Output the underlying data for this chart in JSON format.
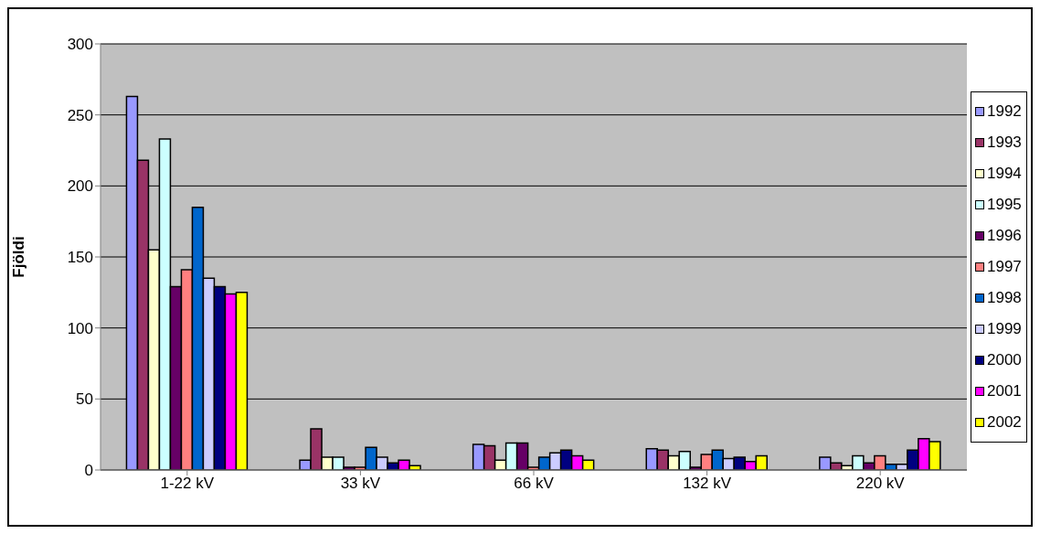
{
  "chart_data": {
    "type": "bar",
    "ylabel": "Fjöldi",
    "categories": [
      "1-22 kV",
      "33 kV",
      "66 kV",
      "132 kV",
      "220 kV"
    ],
    "ylim": [
      0,
      300
    ],
    "yticks": [
      0,
      50,
      100,
      150,
      200,
      250,
      300
    ],
    "grid": "y",
    "legend": "right",
    "series": [
      {
        "name": "1992",
        "color": "#9999ff",
        "values": [
          263,
          7,
          18,
          15,
          9
        ]
      },
      {
        "name": "1993",
        "color": "#993366",
        "values": [
          218,
          29,
          17,
          14,
          5
        ]
      },
      {
        "name": "1994",
        "color": "#ffffcc",
        "values": [
          155,
          9,
          7,
          10,
          3
        ]
      },
      {
        "name": "1995",
        "color": "#ccffff",
        "values": [
          233,
          9,
          19,
          13,
          10
        ]
      },
      {
        "name": "1996",
        "color": "#660066",
        "values": [
          129,
          2,
          19,
          2,
          5
        ]
      },
      {
        "name": "1997",
        "color": "#ff8080",
        "values": [
          141,
          2,
          2,
          11,
          10
        ]
      },
      {
        "name": "1998",
        "color": "#0066cc",
        "values": [
          185,
          16,
          9,
          14,
          4
        ]
      },
      {
        "name": "1999",
        "color": "#ccccff",
        "values": [
          135,
          9,
          12,
          8,
          4
        ]
      },
      {
        "name": "2000",
        "color": "#000080",
        "values": [
          129,
          5,
          14,
          9,
          14
        ]
      },
      {
        "name": "2001",
        "color": "#ff00ff",
        "values": [
          124,
          7,
          10,
          6,
          22
        ]
      },
      {
        "name": "2002",
        "color": "#ffff00",
        "values": [
          125,
          3,
          7,
          10,
          20
        ]
      }
    ]
  }
}
